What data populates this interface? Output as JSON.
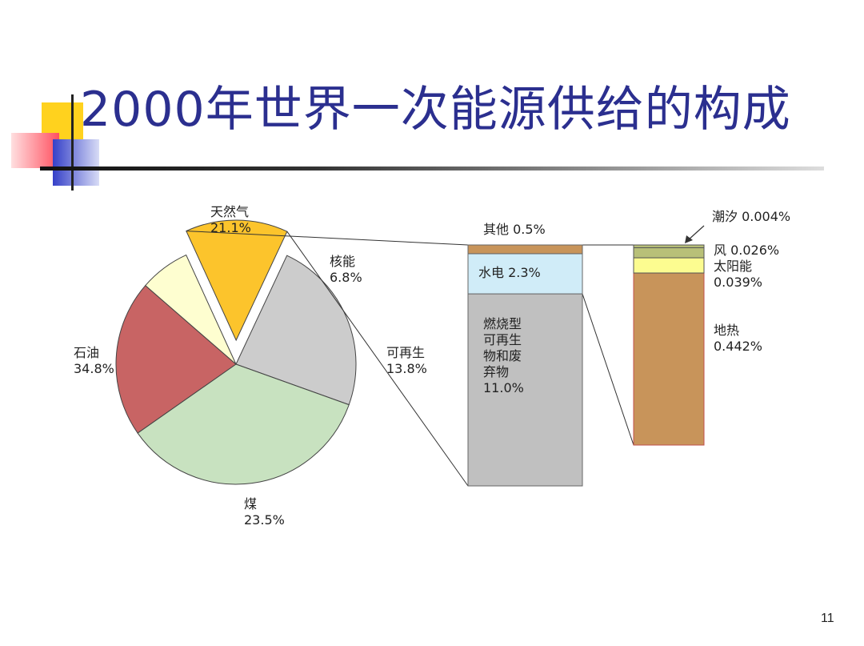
{
  "title": "2000年世界一次能源供给的构成",
  "page_number": "11",
  "chart_data": [
    {
      "type": "pie",
      "slices": [
        {
          "name": "天然气",
          "value": 21.1,
          "label": "21.1%",
          "color": "#c86464"
        },
        {
          "name": "核能",
          "value": 6.8,
          "label": "6.8%",
          "color": "#fefed0"
        },
        {
          "name": "可再生",
          "value": 13.8,
          "label": "13.8%",
          "color": "#fcc42c",
          "exploded": true
        },
        {
          "name": "煤",
          "value": 23.5,
          "label": "23.5%",
          "color": "#cccccc"
        },
        {
          "name": "石油",
          "value": 34.8,
          "label": "34.8%",
          "color": "#c8e2c0"
        }
      ]
    },
    {
      "type": "bar",
      "stacked": true,
      "segments": [
        {
          "name": "燃烧型可再生物和废弃物",
          "lines": [
            "燃烧型",
            "可再生",
            "物和废",
            "弃物",
            "11.0%"
          ],
          "value": 11.0,
          "color": "#c0c0c0"
        },
        {
          "name": "水电",
          "label": "水电  2.3%",
          "value": 2.3,
          "color": "#d0ecf8"
        },
        {
          "name": "其他",
          "label": "其他 0.5%",
          "value": 0.5,
          "color": "#c8945a"
        }
      ]
    },
    {
      "type": "bar",
      "stacked": true,
      "segments": [
        {
          "name": "地热",
          "lines": [
            "地热",
            "0.442%"
          ],
          "value": 0.442,
          "color": "#c8945a"
        },
        {
          "name": "太阳能",
          "lines": [
            "太阳能",
            "0.039%"
          ],
          "value": 0.039,
          "color": "#fcfc90"
        },
        {
          "name": "风",
          "label": "风 0.026%",
          "value": 0.026,
          "color": "#b8c078"
        },
        {
          "name": "潮汐",
          "label": "潮汐 0.004%",
          "value": 0.004,
          "color": "#b8c078"
        }
      ]
    }
  ]
}
